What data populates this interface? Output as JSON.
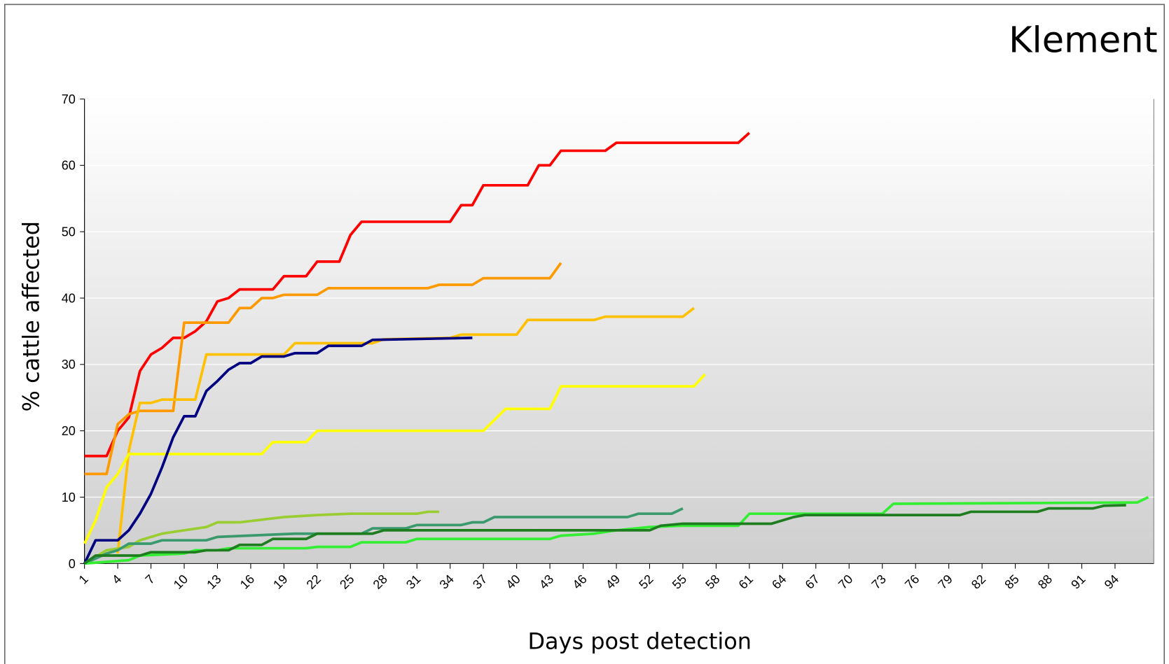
{
  "chart_data": {
    "type": "line",
    "title": "Klement",
    "ylabel": "% cattle affected",
    "xlabel": "Days post detection",
    "xlim": [
      1,
      97.5
    ],
    "xticks": [
      1,
      4,
      7,
      10,
      13,
      16,
      19,
      22,
      25,
      28,
      31,
      34,
      37,
      40,
      43,
      46,
      49,
      52,
      55,
      58,
      61,
      64,
      67,
      70,
      73,
      76,
      79,
      82,
      85,
      88,
      91,
      94
    ],
    "ylim": [
      0,
      70
    ],
    "yticks": [
      0,
      10,
      20,
      30,
      40,
      50,
      60,
      70
    ],
    "grid": true,
    "series": [
      {
        "color": "#ff0000",
        "x": [
          1,
          3,
          4,
          5,
          6,
          7,
          8,
          9,
          10,
          11,
          12,
          13,
          14,
          15,
          18,
          19,
          21,
          22,
          24,
          25,
          26,
          34,
          35,
          36,
          37,
          41,
          42,
          43,
          44,
          48,
          49,
          60,
          61
        ],
        "values": [
          16.2,
          16.2,
          20,
          22,
          29,
          31.5,
          32.5,
          34,
          34,
          35,
          36.5,
          39.5,
          40,
          41.3,
          41.3,
          43.3,
          43.3,
          45.5,
          45.5,
          49.5,
          51.5,
          51.5,
          54,
          54,
          57,
          57,
          60,
          60,
          62.2,
          62.2,
          63.4,
          63.4,
          64.9
        ]
      },
      {
        "color": "#ff9900",
        "x": [
          1,
          3,
          4,
          5,
          6,
          9,
          10,
          14,
          15,
          16,
          17,
          18,
          19,
          22,
          23,
          32,
          33,
          36,
          37,
          43,
          44
        ],
        "values": [
          13.5,
          13.5,
          21,
          22.5,
          23,
          23,
          36.3,
          36.3,
          38.5,
          38.5,
          40,
          40,
          40.5,
          40.5,
          41.5,
          41.5,
          42,
          42,
          43,
          43,
          45.3
        ]
      },
      {
        "color": "#ffc000",
        "x": [
          4,
          5,
          6,
          7,
          8,
          11,
          12,
          19,
          20,
          27,
          28,
          34,
          35,
          40,
          41,
          47,
          48,
          55,
          56
        ],
        "values": [
          1.5,
          17,
          24.2,
          24.2,
          24.7,
          24.7,
          31.5,
          31.5,
          33.2,
          33.2,
          33.8,
          34,
          34.5,
          34.5,
          36.7,
          36.7,
          37.2,
          37.2,
          38.5
        ]
      },
      {
        "color": "#ffff00",
        "x": [
          1,
          2,
          3,
          4,
          5,
          17,
          18,
          21,
          22,
          37,
          39,
          43,
          44,
          56,
          57
        ],
        "values": [
          3,
          6.5,
          11.5,
          13.5,
          16.5,
          16.5,
          18.3,
          18.3,
          20,
          20,
          23.3,
          23.3,
          26.7,
          26.7,
          28.5
        ]
      },
      {
        "color": "#000080",
        "x": [
          1,
          2,
          4,
          5,
          6,
          7,
          8,
          9,
          10,
          11,
          12,
          13,
          14,
          15,
          16,
          17,
          19,
          20,
          22,
          23,
          26,
          27,
          30,
          36
        ],
        "values": [
          0,
          3.5,
          3.5,
          5,
          7.5,
          10.5,
          14.5,
          19,
          22.2,
          22.2,
          26,
          27.5,
          29.2,
          30.2,
          30.2,
          31.2,
          31.2,
          31.7,
          31.7,
          32.8,
          32.8,
          33.7,
          33.8,
          34
        ]
      },
      {
        "color": "#9acd32",
        "x": [
          1,
          3,
          5,
          6,
          8,
          10,
          12,
          13,
          15,
          19,
          22,
          25,
          31,
          32,
          33
        ],
        "values": [
          0,
          2,
          2.5,
          3.5,
          4.5,
          5,
          5.5,
          6.2,
          6.2,
          7,
          7.3,
          7.5,
          7.5,
          7.8,
          7.8
        ]
      },
      {
        "color": "#3a9a6e",
        "x": [
          1,
          3,
          4,
          5,
          7,
          8,
          12,
          13,
          20,
          26,
          27,
          30,
          31,
          35,
          36,
          37,
          38,
          50,
          51,
          54,
          55
        ],
        "values": [
          0,
          1.5,
          2,
          3,
          3,
          3.5,
          3.5,
          4,
          4.5,
          4.5,
          5.3,
          5.3,
          5.8,
          5.8,
          6.2,
          6.2,
          7,
          7,
          7.5,
          7.5,
          8.3
        ]
      },
      {
        "color": "#33ee33",
        "x": [
          1,
          5,
          6,
          10,
          11,
          13,
          14,
          21,
          22,
          25,
          26,
          30,
          31,
          43,
          44,
          47,
          49,
          52,
          55,
          60,
          61,
          73,
          74,
          96,
          97
        ],
        "values": [
          0,
          0.5,
          1.2,
          1.5,
          2,
          2,
          2.3,
          2.3,
          2.5,
          2.5,
          3.2,
          3.2,
          3.7,
          3.7,
          4.2,
          4.5,
          5,
          5.5,
          5.7,
          5.7,
          7.5,
          7.5,
          9,
          9.2,
          10
        ]
      },
      {
        "color": "#1e7d1e",
        "x": [
          1,
          2,
          6,
          7,
          11,
          12,
          14,
          15,
          17,
          18,
          21,
          22,
          27,
          28,
          52,
          53,
          55,
          63,
          65,
          66,
          80,
          81,
          87,
          88,
          92,
          93,
          95
        ],
        "values": [
          0,
          1.2,
          1.2,
          1.7,
          1.7,
          2,
          2,
          2.8,
          2.8,
          3.7,
          3.7,
          4.5,
          4.5,
          5,
          5,
          5.7,
          6,
          6,
          7,
          7.3,
          7.3,
          7.8,
          7.8,
          8.3,
          8.3,
          8.7,
          8.8
        ]
      }
    ]
  }
}
